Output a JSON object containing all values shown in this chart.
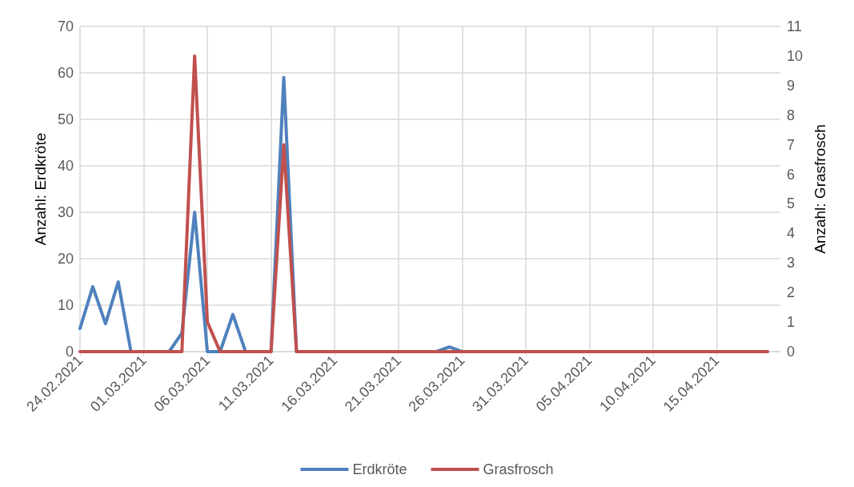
{
  "chart_data": {
    "type": "line",
    "ylabel": "Anzahl: Erdkröte",
    "y2label": "Anzahl: Grasfrosch",
    "x": [
      "2021-02-24",
      "2021-02-25",
      "2021-02-26",
      "2021-02-27",
      "2021-02-28",
      "2021-03-01",
      "2021-03-02",
      "2021-03-03",
      "2021-03-04",
      "2021-03-05",
      "2021-03-06",
      "2021-03-07",
      "2021-03-08",
      "2021-03-09",
      "2021-03-10",
      "2021-03-11",
      "2021-03-12",
      "2021-03-13",
      "2021-03-14",
      "2021-03-15",
      "2021-03-16",
      "2021-03-17",
      "2021-03-18",
      "2021-03-19",
      "2021-03-20",
      "2021-03-21",
      "2021-03-22",
      "2021-03-23",
      "2021-03-24",
      "2021-03-25",
      "2021-03-26",
      "2021-03-27",
      "2021-03-28",
      "2021-03-29",
      "2021-03-30",
      "2021-03-31",
      "2021-04-01",
      "2021-04-02",
      "2021-04-03",
      "2021-04-04",
      "2021-04-05",
      "2021-04-06",
      "2021-04-07",
      "2021-04-08",
      "2021-04-09",
      "2021-04-10",
      "2021-04-11",
      "2021-04-12",
      "2021-04-13",
      "2021-04-14",
      "2021-04-15",
      "2021-04-16",
      "2021-04-17",
      "2021-04-18",
      "2021-04-19"
    ],
    "series": [
      {
        "name": "Erdkröte",
        "color": "#4f81bd",
        "values": [
          5,
          14,
          6,
          15,
          0,
          null,
          null,
          0,
          4,
          30,
          0,
          0,
          8,
          0,
          null,
          0,
          59,
          0,
          null,
          null,
          null,
          null,
          null,
          null,
          null,
          null,
          null,
          null,
          0,
          1,
          0,
          null,
          null,
          null,
          null,
          null,
          null,
          null,
          null,
          null,
          null,
          null,
          null,
          null,
          null,
          null,
          null,
          null,
          null,
          null,
          null,
          null,
          null,
          null,
          null
        ]
      },
      {
        "name": "Grasfrosch",
        "color": "#c0504d",
        "axis": "y2",
        "values": [
          0,
          0,
          0,
          0,
          0,
          0,
          0,
          0,
          0,
          10,
          1,
          0,
          0,
          0,
          0,
          0,
          7,
          0,
          0,
          0,
          0,
          0,
          0,
          0,
          0,
          0,
          0,
          0,
          0,
          0,
          0,
          0,
          0,
          0,
          0,
          0,
          0,
          0,
          0,
          0,
          0,
          0,
          0,
          0,
          0,
          0,
          0,
          0,
          0,
          0,
          0,
          0,
          0,
          0,
          0
        ]
      }
    ],
    "xlim": [
      "2021-02-24",
      "2021-04-20"
    ],
    "xticks": [
      {
        "value": "2021-02-24",
        "label": "24.02.2021"
      },
      {
        "value": "2021-03-01",
        "label": "01.03.2021"
      },
      {
        "value": "2021-03-06",
        "label": "06.03.2021"
      },
      {
        "value": "2021-03-11",
        "label": "11.03.2021"
      },
      {
        "value": "2021-03-16",
        "label": "16.03.2021"
      },
      {
        "value": "2021-03-21",
        "label": "21.03.2021"
      },
      {
        "value": "2021-03-26",
        "label": "26.03.2021"
      },
      {
        "value": "2021-03-31",
        "label": "31.03.2021"
      },
      {
        "value": "2021-04-05",
        "label": "05.04.2021"
      },
      {
        "value": "2021-04-10",
        "label": "10.04.2021"
      },
      {
        "value": "2021-04-15",
        "label": "15.04.2021"
      }
    ],
    "ylim": [
      0,
      70
    ],
    "yticks": [
      0,
      10,
      20,
      30,
      40,
      50,
      60,
      70
    ],
    "y2lim": [
      0,
      11
    ],
    "y2ticks": [
      0,
      1,
      2,
      3,
      4,
      5,
      6,
      7,
      8,
      9,
      10,
      11
    ],
    "grid": true,
    "legend": "bottom",
    "marker": "none",
    "line_style": "solid"
  }
}
